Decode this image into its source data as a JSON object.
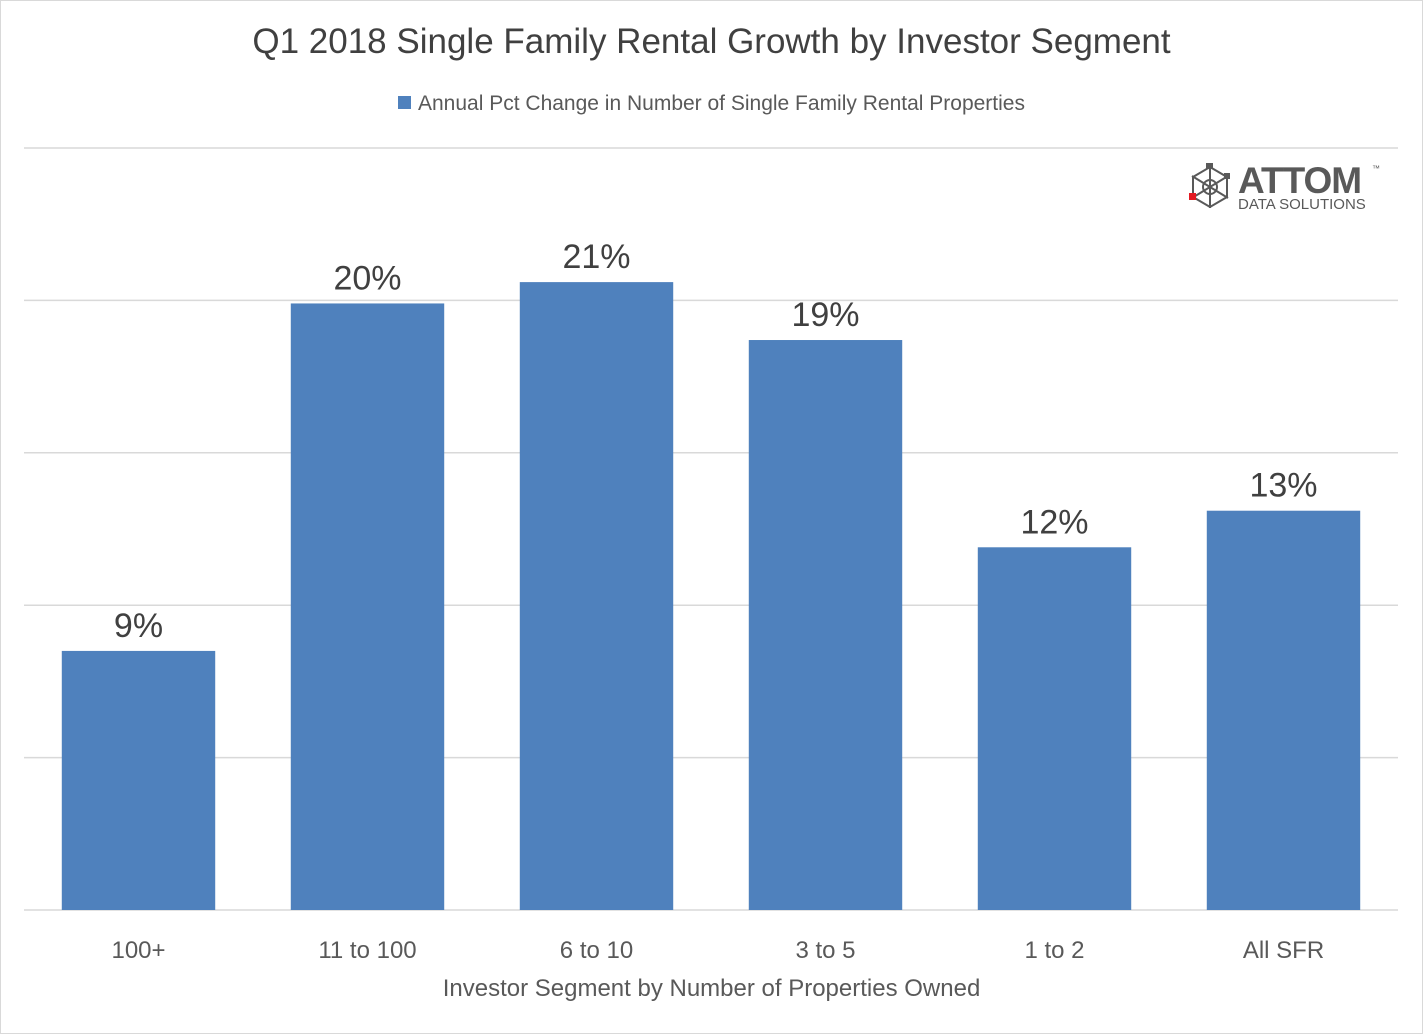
{
  "chart_data": {
    "type": "bar",
    "title": "Q1 2018 Single Family Rental Growth by Investor Segment",
    "xlabel": "Investor Segment by Number of Properties Owned",
    "ylabel": "",
    "categories": [
      "100+",
      "11 to 100",
      "6 to 10",
      "3 to 5",
      "1 to 2",
      "All SFR"
    ],
    "series": [
      {
        "name": "Annual Pct Change in Number of Single Family Rental Properties",
        "values": [
          8.5,
          19.9,
          20.6,
          18.7,
          11.9,
          13.1
        ],
        "labels": [
          "9%",
          "20%",
          "21%",
          "19%",
          "12%",
          "13%"
        ],
        "color": "#4f81bd"
      }
    ],
    "ylim": [
      0,
      25
    ],
    "grid": true,
    "legend": "top-center"
  },
  "logo": {
    "word": "ATTOM",
    "sub": "DATA SOLUTIONS",
    "tm": "™"
  },
  "colors": {
    "bar": "#4f81bd",
    "grid": "#d9d9d9",
    "text": "#404040",
    "logo_accent": "#e31b23"
  }
}
